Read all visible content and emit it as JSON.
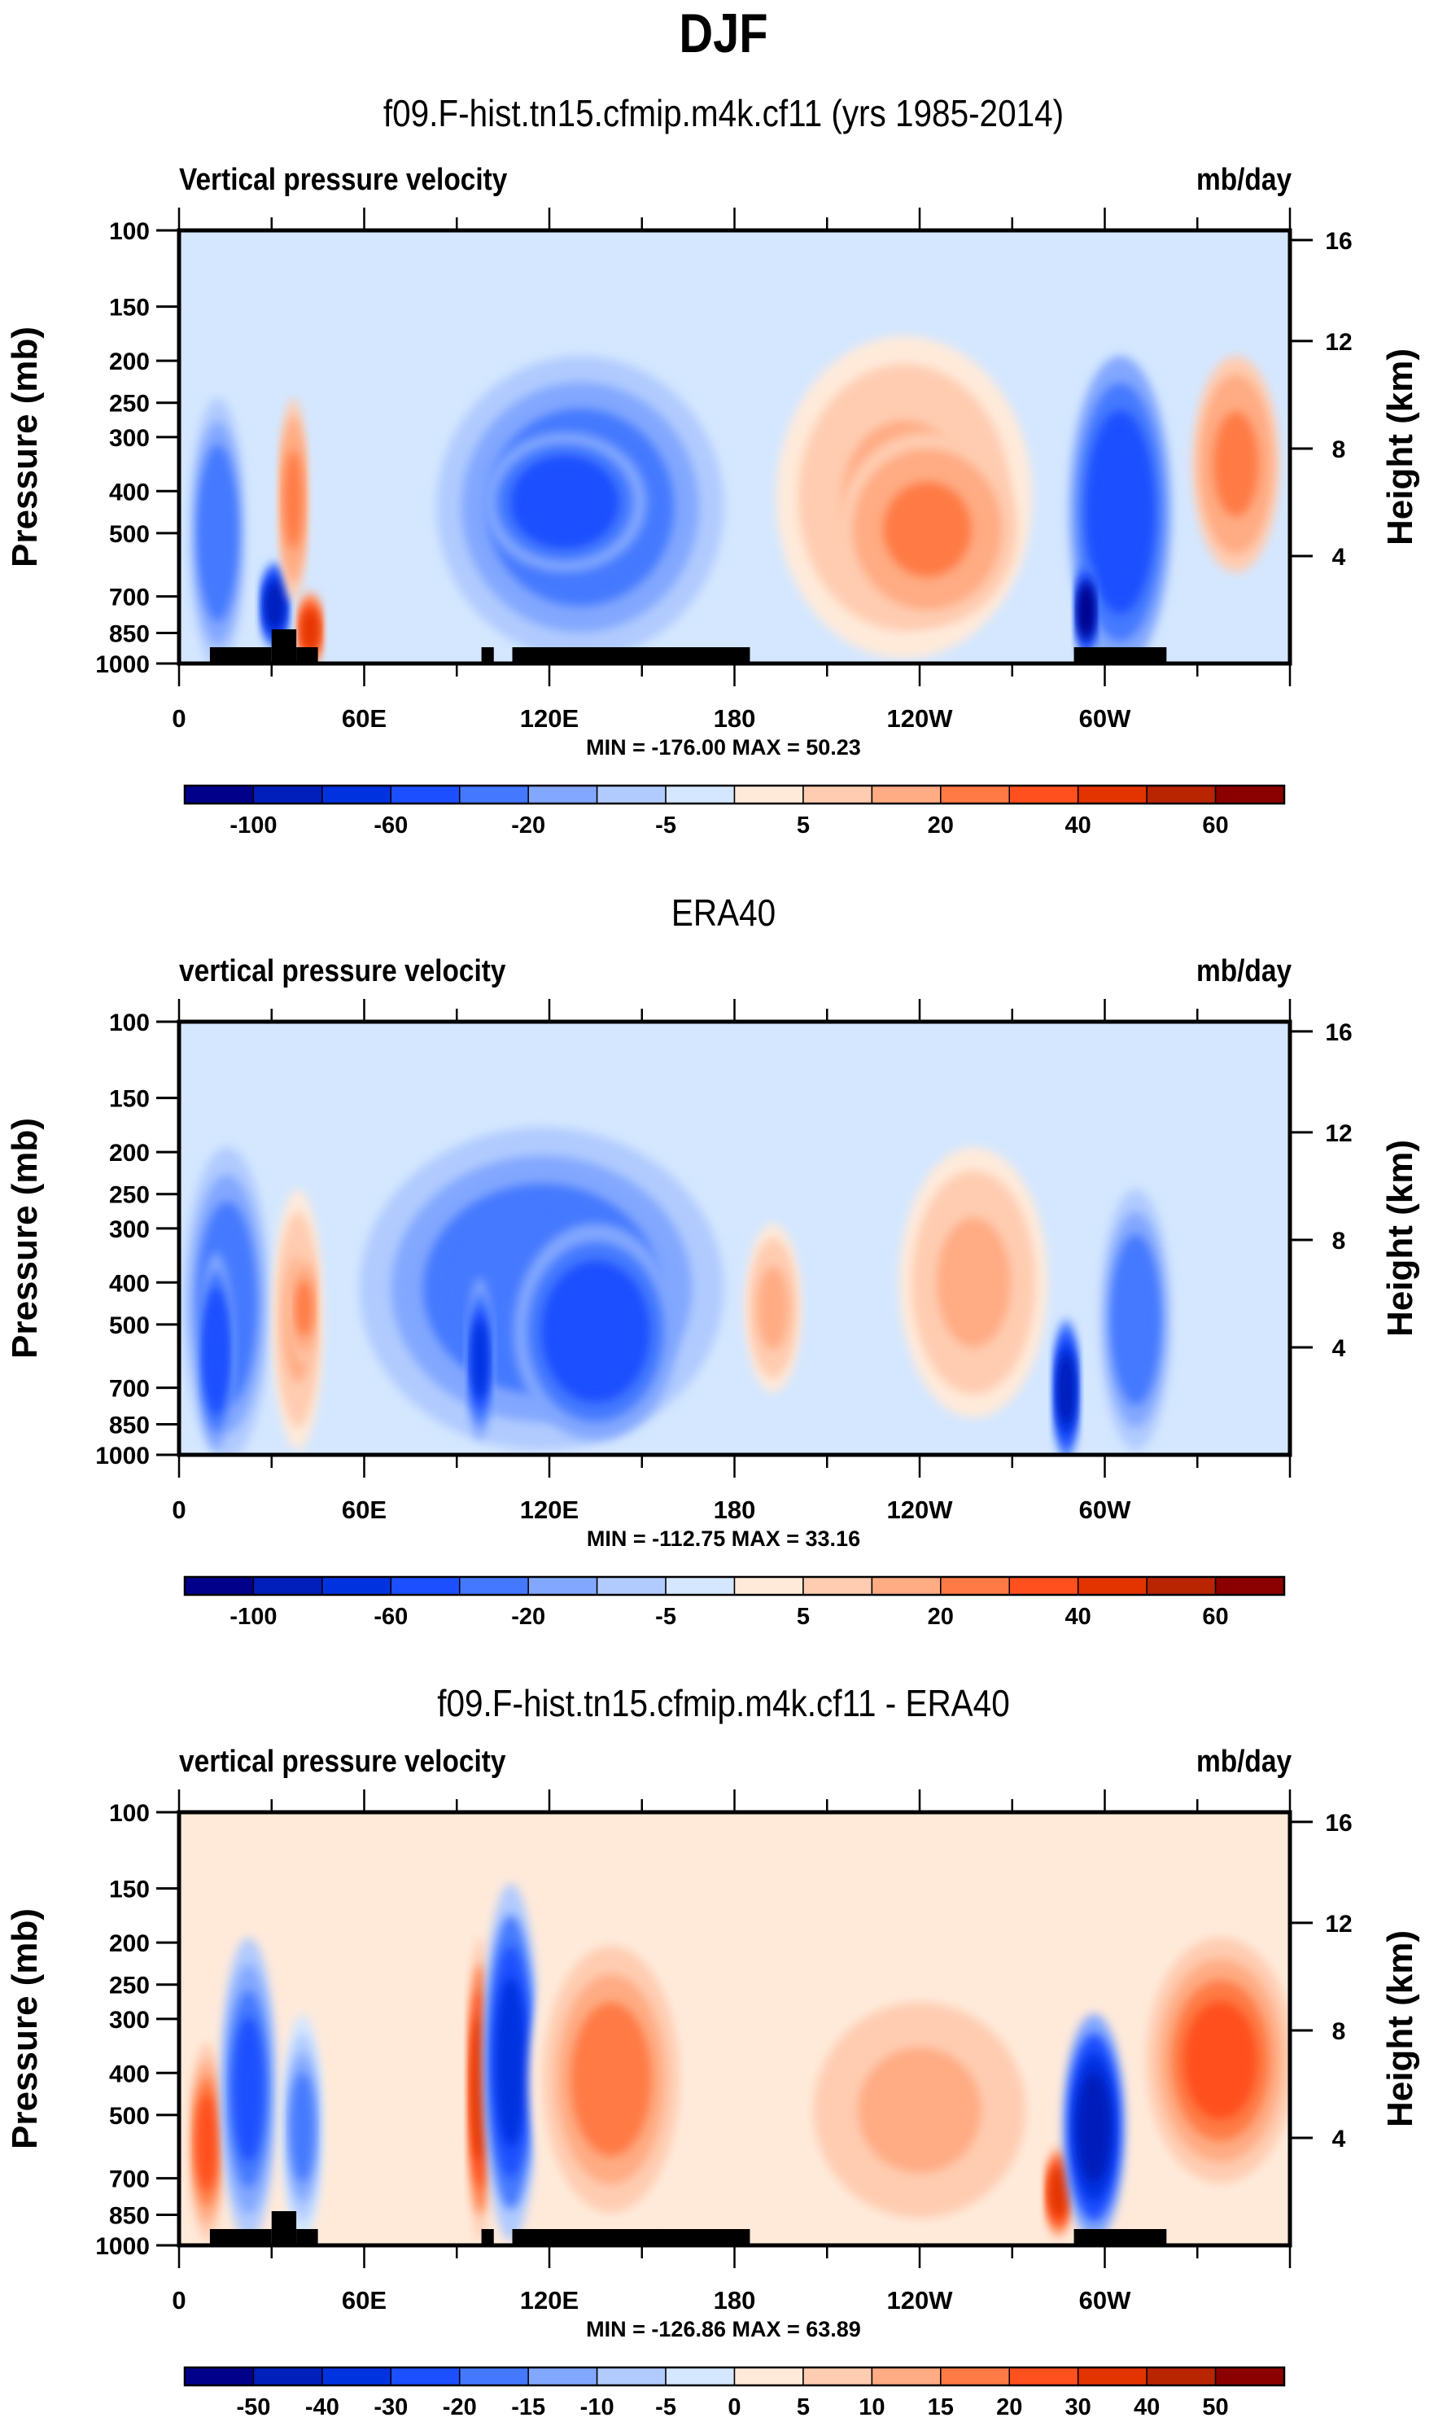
{
  "figure": {
    "title": "DJF"
  },
  "chart_data": [
    {
      "type": "heatmap",
      "subtype": "filled-contour pressure-longitude cross section",
      "title": "f09.F-hist.tn15.cfmip.m4k.cf11 (yrs 1985-2014)",
      "left_label": "Vertical pressure velocity",
      "units": "mb/day",
      "xlabel": "",
      "ylabel": "Pressure (mb)",
      "y2label": "Height (km)",
      "x_ticks": [
        "0",
        "60E",
        "120E",
        "180",
        "120W",
        "60W"
      ],
      "x_range_deg": [
        0,
        360
      ],
      "y_ticks": [
        "100",
        "150",
        "200",
        "250",
        "300",
        "400",
        "500",
        "700",
        "850",
        "1000"
      ],
      "y_range_mb": [
        100,
        1000
      ],
      "y2_ticks": [
        "4",
        "8",
        "12",
        "16"
      ],
      "stats": "MIN = -176.00  MAX =  50.23",
      "min": -176.0,
      "max": 50.23,
      "colorbar": {
        "levels": [
          -120,
          -100,
          -80,
          -60,
          -40,
          -20,
          -10,
          -5,
          0,
          5,
          10,
          20,
          30,
          40,
          50,
          60
        ],
        "labels": [
          "-100",
          "-60",
          "-20",
          "-5",
          "5",
          "20",
          "40",
          "60"
        ],
        "colors": [
          "#00008b",
          "#001fbb",
          "#0032e0",
          "#1b4fff",
          "#4479ff",
          "#82a7ff",
          "#b1cbff",
          "#d4e7ff",
          "#ffeada",
          "#ffccb1",
          "#ffab83",
          "#ff7a45",
          "#ff501d",
          "#e33400",
          "#b82500",
          "#8b0000"
        ]
      },
      "regions": [
        {
          "lon": [
            5,
            20
          ],
          "p": [
            250,
            1000
          ],
          "value": -40
        },
        {
          "lon": [
            28,
            34
          ],
          "p": [
            600,
            900
          ],
          "value": -100
        },
        {
          "lon": [
            34,
            40
          ],
          "p": [
            250,
            700
          ],
          "value": 20
        },
        {
          "lon": [
            40,
            45
          ],
          "p": [
            700,
            1000
          ],
          "value": 40
        },
        {
          "lon": [
            85,
            175
          ],
          "p": [
            200,
            950
          ],
          "value": -40
        },
        {
          "lon": [
            100,
            150
          ],
          "p": [
            300,
            600
          ],
          "value": -60
        },
        {
          "lon": [
            195,
            275
          ],
          "p": [
            180,
            950
          ],
          "value": 10
        },
        {
          "lon": [
            215,
            270
          ],
          "p": [
            300,
            800
          ],
          "value": 20
        },
        {
          "lon": [
            290,
            320
          ],
          "p": [
            200,
            1000
          ],
          "value": -60
        },
        {
          "lon": [
            292,
            296
          ],
          "p": [
            600,
            950
          ],
          "value": -120
        },
        {
          "lon": [
            330,
            355
          ],
          "p": [
            200,
            600
          ],
          "value": 20
        }
      ],
      "land_mask_lon": [
        [
          10,
          30
        ],
        [
          30,
          38
        ],
        [
          38,
          45
        ],
        [
          98,
          102
        ],
        [
          108,
          185
        ],
        [
          290,
          320
        ]
      ]
    },
    {
      "type": "heatmap",
      "subtype": "filled-contour pressure-longitude cross section",
      "title": "ERA40",
      "left_label": "vertical pressure velocity",
      "units": "mb/day",
      "xlabel": "",
      "ylabel": "Pressure (mb)",
      "y2label": "Height (km)",
      "x_ticks": [
        "0",
        "60E",
        "120E",
        "180",
        "120W",
        "60W"
      ],
      "x_range_deg": [
        0,
        360
      ],
      "y_ticks": [
        "100",
        "150",
        "200",
        "250",
        "300",
        "400",
        "500",
        "700",
        "850",
        "1000"
      ],
      "y_range_mb": [
        100,
        1000
      ],
      "y2_ticks": [
        "4",
        "8",
        "12",
        "16"
      ],
      "stats": "MIN = -112.75  MAX =  33.16",
      "min": -112.75,
      "max": 33.16,
      "colorbar": {
        "levels": [
          -120,
          -100,
          -80,
          -60,
          -40,
          -20,
          -10,
          -5,
          0,
          5,
          10,
          20,
          30,
          40,
          50,
          60
        ],
        "labels": [
          "-100",
          "-60",
          "-20",
          "-5",
          "5",
          "20",
          "40",
          "60"
        ],
        "colors": [
          "#00008b",
          "#001fbb",
          "#0032e0",
          "#1b4fff",
          "#4479ff",
          "#82a7ff",
          "#b1cbff",
          "#d4e7ff",
          "#ffeada",
          "#ffccb1",
          "#ffab83",
          "#ff7a45",
          "#ff501d",
          "#e33400",
          "#b82500",
          "#8b0000"
        ]
      },
      "regions": [
        {
          "lon": [
            3,
            28
          ],
          "p": [
            200,
            1000
          ],
          "value": -40
        },
        {
          "lon": [
            8,
            16
          ],
          "p": [
            350,
            950
          ],
          "value": -60
        },
        {
          "lon": [
            32,
            45
          ],
          "p": [
            250,
            950
          ],
          "value": 10
        },
        {
          "lon": [
            38,
            43
          ],
          "p": [
            350,
            600
          ],
          "value": 20
        },
        {
          "lon": [
            60,
            175
          ],
          "p": [
            180,
            950
          ],
          "value": -40
        },
        {
          "lon": [
            95,
            100
          ],
          "p": [
            400,
            900
          ],
          "value": -80
        },
        {
          "lon": [
            110,
            160
          ],
          "p": [
            300,
            900
          ],
          "value": -60
        },
        {
          "lon": [
            185,
            200
          ],
          "p": [
            300,
            700
          ],
          "value": 10
        },
        {
          "lon": [
            235,
            280
          ],
          "p": [
            200,
            800
          ],
          "value": 10
        },
        {
          "lon": [
            285,
            290
          ],
          "p": [
            500,
            1000
          ],
          "value": -100
        },
        {
          "lon": [
            300,
            320
          ],
          "p": [
            250,
            950
          ],
          "value": -40
        }
      ]
    },
    {
      "type": "heatmap",
      "subtype": "filled-contour pressure-longitude cross section (difference)",
      "title": "f09.F-hist.tn15.cfmip.m4k.cf11 - ERA40",
      "left_label": "vertical pressure velocity",
      "units": "mb/day",
      "xlabel": "",
      "ylabel": "Pressure (mb)",
      "y2label": "Height (km)",
      "x_ticks": [
        "0",
        "60E",
        "120E",
        "180",
        "120W",
        "60W"
      ],
      "x_range_deg": [
        0,
        360
      ],
      "y_ticks": [
        "100",
        "150",
        "200",
        "250",
        "300",
        "400",
        "500",
        "700",
        "850",
        "1000"
      ],
      "y_range_mb": [
        100,
        1000
      ],
      "y2_ticks": [
        "4",
        "8",
        "12",
        "16"
      ],
      "stats": "MIN = -126.86  MAX =  63.89",
      "min": -126.86,
      "max": 63.89,
      "colorbar": {
        "levels": [
          -60,
          -50,
          -40,
          -30,
          -20,
          -15,
          -10,
          -5,
          0,
          5,
          10,
          15,
          20,
          30,
          40,
          50,
          60
        ],
        "labels": [
          "-50",
          "-40",
          "-30",
          "-20",
          "-15",
          "-10",
          "-5",
          "0",
          "5",
          "10",
          "15",
          "20",
          "30",
          "40",
          "50"
        ],
        "colors": [
          "#00008b",
          "#001fbb",
          "#0032e0",
          "#1b4fff",
          "#4479ff",
          "#82a7ff",
          "#b1cbff",
          "#d4e7ff",
          "#ffeada",
          "#ffccb1",
          "#ffab83",
          "#ff7a45",
          "#ff501d",
          "#e33400",
          "#b82500",
          "#8b0000"
        ]
      },
      "regions": [
        {
          "lon": [
            5,
            13
          ],
          "p": [
            350,
            950
          ],
          "value": 25
        },
        {
          "lon": [
            15,
            30
          ],
          "p": [
            200,
            950
          ],
          "value": -25
        },
        {
          "lon": [
            35,
            45
          ],
          "p": [
            300,
            950
          ],
          "value": -20
        },
        {
          "lon": [
            95,
            100
          ],
          "p": [
            200,
            950
          ],
          "value": 35
        },
        {
          "lon": [
            100,
            115
          ],
          "p": [
            150,
            950
          ],
          "value": -35
        },
        {
          "lon": [
            115,
            165
          ],
          "p": [
            180,
            950
          ],
          "value": 18
        },
        {
          "lon": [
            200,
            280
          ],
          "p": [
            250,
            950
          ],
          "value": 12
        },
        {
          "lon": [
            282,
            288
          ],
          "p": [
            600,
            950
          ],
          "value": 35
        },
        {
          "lon": [
            288,
            305
          ],
          "p": [
            300,
            950
          ],
          "value": -45
        },
        {
          "lon": [
            315,
            360
          ],
          "p": [
            200,
            700
          ],
          "value": 25
        }
      ],
      "land_mask_lon": [
        [
          10,
          30
        ],
        [
          30,
          38
        ],
        [
          38,
          45
        ],
        [
          98,
          102
        ],
        [
          108,
          185
        ],
        [
          290,
          320
        ]
      ]
    }
  ]
}
